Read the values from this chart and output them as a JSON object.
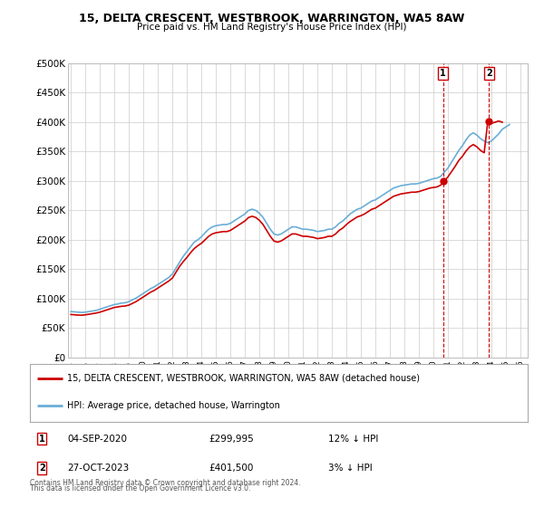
{
  "title": "15, DELTA CRESCENT, WESTBROOK, WARRINGTON, WA5 8AW",
  "subtitle": "Price paid vs. HM Land Registry's House Price Index (HPI)",
  "hpi_color": "#6aaed6",
  "price_color": "#cc0000",
  "background_color": "#ffffff",
  "grid_color": "#cccccc",
  "ylim": [
    0,
    500000
  ],
  "yticks": [
    0,
    50000,
    100000,
    150000,
    200000,
    250000,
    300000,
    350000,
    400000,
    450000,
    500000
  ],
  "ytick_labels": [
    "£0",
    "£50K",
    "£100K",
    "£150K",
    "£200K",
    "£250K",
    "£300K",
    "£350K",
    "£400K",
    "£450K",
    "£500K"
  ],
  "xlim_start": 1994.8,
  "xlim_end": 2026.5,
  "annotation1": {
    "label": "1",
    "date": "04-SEP-2020",
    "price": 299995,
    "hpi_diff": "12% ↓ HPI",
    "x": 2020.67
  },
  "annotation2": {
    "label": "2",
    "date": "27-OCT-2023",
    "price": 401500,
    "hpi_diff": "3% ↓ HPI",
    "x": 2023.83
  },
  "legend_line1": "15, DELTA CRESCENT, WESTBROOK, WARRINGTON, WA5 8AW (detached house)",
  "legend_line2": "HPI: Average price, detached house, Warrington",
  "footer1": "Contains HM Land Registry data © Crown copyright and database right 2024.",
  "footer2": "This data is licensed under the Open Government Licence v3.0.",
  "hpi_data": [
    [
      1995.0,
      78000
    ],
    [
      1995.25,
      77500
    ],
    [
      1995.5,
      77000
    ],
    [
      1995.75,
      76500
    ],
    [
      1996.0,
      77000
    ],
    [
      1996.25,
      78000
    ],
    [
      1996.5,
      79000
    ],
    [
      1996.75,
      80000
    ],
    [
      1997.0,
      82000
    ],
    [
      1997.25,
      84000
    ],
    [
      1997.5,
      86000
    ],
    [
      1997.75,
      88000
    ],
    [
      1998.0,
      90000
    ],
    [
      1998.25,
      91000
    ],
    [
      1998.5,
      92500
    ],
    [
      1998.75,
      93000
    ],
    [
      1999.0,
      95000
    ],
    [
      1999.25,
      98000
    ],
    [
      1999.5,
      101000
    ],
    [
      1999.75,
      105000
    ],
    [
      2000.0,
      109000
    ],
    [
      2000.25,
      113000
    ],
    [
      2000.5,
      117000
    ],
    [
      2000.75,
      120000
    ],
    [
      2001.0,
      124000
    ],
    [
      2001.25,
      128000
    ],
    [
      2001.5,
      132000
    ],
    [
      2001.75,
      136000
    ],
    [
      2002.0,
      142000
    ],
    [
      2002.25,
      152000
    ],
    [
      2002.5,
      162000
    ],
    [
      2002.75,
      172000
    ],
    [
      2003.0,
      180000
    ],
    [
      2003.25,
      188000
    ],
    [
      2003.5,
      196000
    ],
    [
      2003.75,
      200000
    ],
    [
      2004.0,
      205000
    ],
    [
      2004.25,
      212000
    ],
    [
      2004.5,
      218000
    ],
    [
      2004.75,
      222000
    ],
    [
      2005.0,
      224000
    ],
    [
      2005.25,
      225000
    ],
    [
      2005.5,
      226000
    ],
    [
      2005.75,
      226000
    ],
    [
      2006.0,
      228000
    ],
    [
      2006.25,
      232000
    ],
    [
      2006.5,
      236000
    ],
    [
      2006.75,
      240000
    ],
    [
      2007.0,
      244000
    ],
    [
      2007.25,
      250000
    ],
    [
      2007.5,
      252000
    ],
    [
      2007.75,
      250000
    ],
    [
      2008.0,
      245000
    ],
    [
      2008.25,
      238000
    ],
    [
      2008.5,
      228000
    ],
    [
      2008.75,
      218000
    ],
    [
      2009.0,
      210000
    ],
    [
      2009.25,
      208000
    ],
    [
      2009.5,
      210000
    ],
    [
      2009.75,
      214000
    ],
    [
      2010.0,
      218000
    ],
    [
      2010.25,
      222000
    ],
    [
      2010.5,
      222000
    ],
    [
      2010.75,
      220000
    ],
    [
      2011.0,
      218000
    ],
    [
      2011.25,
      218000
    ],
    [
      2011.5,
      217000
    ],
    [
      2011.75,
      216000
    ],
    [
      2012.0,
      214000
    ],
    [
      2012.25,
      215000
    ],
    [
      2012.5,
      216000
    ],
    [
      2012.75,
      218000
    ],
    [
      2013.0,
      218000
    ],
    [
      2013.25,
      222000
    ],
    [
      2013.5,
      228000
    ],
    [
      2013.75,
      232000
    ],
    [
      2014.0,
      238000
    ],
    [
      2014.25,
      244000
    ],
    [
      2014.5,
      248000
    ],
    [
      2014.75,
      252000
    ],
    [
      2015.0,
      254000
    ],
    [
      2015.25,
      258000
    ],
    [
      2015.5,
      262000
    ],
    [
      2015.75,
      266000
    ],
    [
      2016.0,
      268000
    ],
    [
      2016.25,
      272000
    ],
    [
      2016.5,
      276000
    ],
    [
      2016.75,
      280000
    ],
    [
      2017.0,
      284000
    ],
    [
      2017.25,
      288000
    ],
    [
      2017.5,
      290000
    ],
    [
      2017.75,
      292000
    ],
    [
      2018.0,
      293000
    ],
    [
      2018.25,
      294000
    ],
    [
      2018.5,
      295000
    ],
    [
      2018.75,
      295000
    ],
    [
      2019.0,
      296000
    ],
    [
      2019.25,
      298000
    ],
    [
      2019.5,
      300000
    ],
    [
      2019.75,
      302000
    ],
    [
      2020.0,
      304000
    ],
    [
      2020.25,
      305000
    ],
    [
      2020.5,
      308000
    ],
    [
      2020.75,
      315000
    ],
    [
      2021.0,
      322000
    ],
    [
      2021.25,
      332000
    ],
    [
      2021.5,
      342000
    ],
    [
      2021.75,
      352000
    ],
    [
      2022.0,
      360000
    ],
    [
      2022.25,
      370000
    ],
    [
      2022.5,
      378000
    ],
    [
      2022.75,
      382000
    ],
    [
      2023.0,
      378000
    ],
    [
      2023.25,
      372000
    ],
    [
      2023.5,
      368000
    ],
    [
      2023.75,
      365000
    ],
    [
      2024.0,
      368000
    ],
    [
      2024.25,
      374000
    ],
    [
      2024.5,
      380000
    ],
    [
      2024.75,
      388000
    ],
    [
      2025.0,
      392000
    ],
    [
      2025.25,
      396000
    ]
  ],
  "price_paid_data": [
    [
      1995.0,
      73000
    ],
    [
      1995.25,
      72500
    ],
    [
      1995.5,
      72000
    ],
    [
      1995.75,
      71800
    ],
    [
      1996.0,
      72500
    ],
    [
      1996.25,
      73500
    ],
    [
      1996.5,
      74500
    ],
    [
      1996.75,
      75500
    ],
    [
      1997.0,
      77000
    ],
    [
      1997.25,
      79000
    ],
    [
      1997.5,
      81000
    ],
    [
      1997.75,
      83000
    ],
    [
      1998.0,
      85000
    ],
    [
      1998.25,
      86000
    ],
    [
      1998.5,
      87000
    ],
    [
      1998.75,
      87500
    ],
    [
      1999.0,
      89000
    ],
    [
      1999.25,
      92000
    ],
    [
      1999.5,
      95000
    ],
    [
      1999.75,
      99000
    ],
    [
      2000.0,
      103000
    ],
    [
      2000.25,
      107000
    ],
    [
      2000.5,
      111000
    ],
    [
      2000.75,
      114000
    ],
    [
      2001.0,
      118000
    ],
    [
      2001.25,
      122000
    ],
    [
      2001.5,
      126000
    ],
    [
      2001.75,
      130000
    ],
    [
      2002.0,
      135000
    ],
    [
      2002.25,
      145000
    ],
    [
      2002.5,
      155000
    ],
    [
      2002.75,
      163000
    ],
    [
      2003.0,
      170000
    ],
    [
      2003.25,
      178000
    ],
    [
      2003.5,
      185000
    ],
    [
      2003.75,
      190000
    ],
    [
      2004.0,
      194000
    ],
    [
      2004.25,
      200000
    ],
    [
      2004.5,
      206000
    ],
    [
      2004.75,
      210000
    ],
    [
      2005.0,
      212000
    ],
    [
      2005.25,
      213000
    ],
    [
      2005.5,
      214000
    ],
    [
      2005.75,
      214000
    ],
    [
      2006.0,
      216000
    ],
    [
      2006.25,
      220000
    ],
    [
      2006.5,
      224000
    ],
    [
      2006.75,
      228000
    ],
    [
      2007.0,
      232000
    ],
    [
      2007.25,
      238000
    ],
    [
      2007.5,
      240000
    ],
    [
      2007.75,
      238000
    ],
    [
      2008.0,
      233000
    ],
    [
      2008.25,
      226000
    ],
    [
      2008.5,
      216000
    ],
    [
      2008.75,
      206000
    ],
    [
      2009.0,
      198000
    ],
    [
      2009.25,
      196000
    ],
    [
      2009.5,
      198000
    ],
    [
      2009.75,
      202000
    ],
    [
      2010.0,
      206000
    ],
    [
      2010.25,
      210000
    ],
    [
      2010.5,
      210000
    ],
    [
      2010.75,
      208000
    ],
    [
      2011.0,
      206000
    ],
    [
      2011.25,
      206000
    ],
    [
      2011.5,
      205000
    ],
    [
      2011.75,
      204000
    ],
    [
      2012.0,
      202000
    ],
    [
      2012.25,
      203000
    ],
    [
      2012.5,
      204000
    ],
    [
      2012.75,
      206000
    ],
    [
      2013.0,
      206000
    ],
    [
      2013.25,
      210000
    ],
    [
      2013.5,
      216000
    ],
    [
      2013.75,
      220000
    ],
    [
      2014.0,
      226000
    ],
    [
      2014.25,
      231000
    ],
    [
      2014.5,
      235000
    ],
    [
      2014.75,
      239000
    ],
    [
      2015.0,
      241000
    ],
    [
      2015.25,
      244000
    ],
    [
      2015.5,
      248000
    ],
    [
      2015.75,
      252000
    ],
    [
      2016.0,
      254000
    ],
    [
      2016.25,
      258000
    ],
    [
      2016.5,
      262000
    ],
    [
      2016.75,
      266000
    ],
    [
      2017.0,
      270000
    ],
    [
      2017.25,
      274000
    ],
    [
      2017.5,
      276000
    ],
    [
      2017.75,
      278000
    ],
    [
      2018.0,
      279000
    ],
    [
      2018.25,
      280000
    ],
    [
      2018.5,
      281000
    ],
    [
      2018.75,
      281000
    ],
    [
      2019.0,
      282000
    ],
    [
      2019.25,
      284000
    ],
    [
      2019.5,
      286000
    ],
    [
      2019.75,
      288000
    ],
    [
      2020.0,
      289000
    ],
    [
      2020.25,
      290000
    ],
    [
      2020.5,
      293000
    ],
    [
      2020.75,
      299995
    ],
    [
      2021.0,
      307000
    ],
    [
      2021.25,
      316000
    ],
    [
      2021.5,
      325000
    ],
    [
      2021.75,
      335000
    ],
    [
      2022.0,
      342000
    ],
    [
      2022.25,
      351000
    ],
    [
      2022.5,
      358000
    ],
    [
      2022.75,
      362000
    ],
    [
      2023.0,
      358000
    ],
    [
      2023.25,
      352000
    ],
    [
      2023.5,
      348000
    ],
    [
      2023.75,
      401500
    ],
    [
      2024.0,
      398000
    ],
    [
      2024.25,
      400000
    ],
    [
      2024.5,
      402000
    ],
    [
      2024.75,
      400000
    ]
  ]
}
